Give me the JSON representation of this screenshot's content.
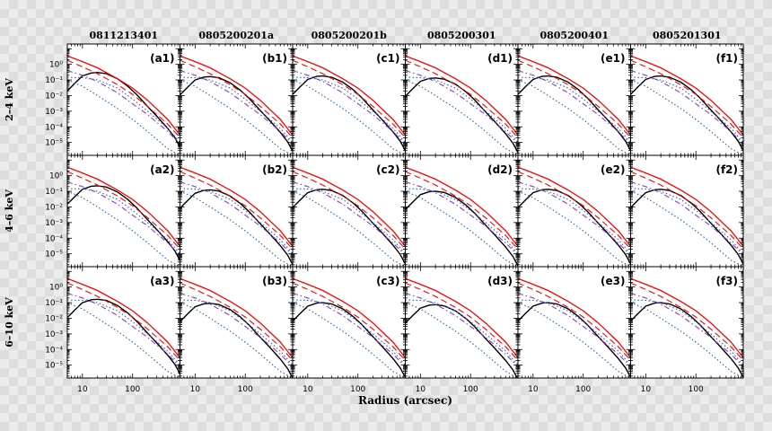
{
  "chart_data": {
    "type": "line",
    "title": "",
    "xlabel": "Radius (arcsec)",
    "xscale": "log",
    "yscale": "log",
    "xlim": [
      5,
      880
    ],
    "ylim": [
      1.5e-06,
      20
    ],
    "columns": [
      "0811213401",
      "0805200201a",
      "0805200201b",
      "0805200301",
      "0805200401",
      "0805201301"
    ],
    "rows": [
      "2–4 keV",
      "4–6 keV",
      "6–10 keV"
    ],
    "panel_labels": [
      [
        "(a1)",
        "(b1)",
        "(c1)",
        "(d1)",
        "(e1)",
        "(f1)"
      ],
      [
        "(a2)",
        "(b2)",
        "(c2)",
        "(d2)",
        "(e2)",
        "(f2)"
      ],
      [
        "(a3)",
        "(b3)",
        "(c3)",
        "(d3)",
        "(e3)",
        "(f3)"
      ]
    ],
    "x_ticks": [
      {
        "value": 10,
        "label": "10"
      },
      {
        "value": 100,
        "label": "100"
      }
    ],
    "y_ticks": [
      [
        {
          "value": 1,
          "label": "10⁰"
        },
        {
          "value": 0.1,
          "label": "10⁻¹"
        },
        {
          "value": 0.01,
          "label": "10⁻²"
        },
        {
          "value": 0.001,
          "label": "10⁻³"
        },
        {
          "value": 0.0001,
          "label": "10⁻⁴"
        },
        {
          "value": 1e-05,
          "label": "10⁻⁵"
        }
      ],
      [
        {
          "value": 1,
          "label": "10⁰"
        },
        {
          "value": 0.1,
          "label": "10⁻¹"
        },
        {
          "value": 0.01,
          "label": "10⁻²"
        },
        {
          "value": 0.001,
          "label": "10⁻³"
        },
        {
          "value": 0.0001,
          "label": "10⁻⁴"
        },
        {
          "value": 1e-05,
          "label": "10⁻⁵"
        }
      ],
      [
        {
          "value": 1,
          "label": "10⁰"
        },
        {
          "value": 0.1,
          "label": "10⁻¹"
        },
        {
          "value": 0.01,
          "label": "10⁻²"
        },
        {
          "value": 0.001,
          "label": "10⁻³"
        },
        {
          "value": 0.0001,
          "label": "10⁻⁴"
        },
        {
          "value": 1e-05,
          "label": "10⁻⁵"
        }
      ]
    ],
    "series": [
      {
        "name": "data profile",
        "style": "solid",
        "color": "#000000",
        "x": [
          5,
          7,
          10,
          15,
          20,
          30,
          50,
          80,
          120,
          200,
          300,
          500,
          700,
          880
        ],
        "y": [
          0.02,
          0.06,
          0.18,
          0.28,
          0.3,
          0.25,
          0.12,
          0.04,
          0.012,
          0.002,
          0.0005,
          8e-05,
          2e-05,
          5e-06
        ]
      },
      {
        "name": "total model",
        "style": "solid",
        "color": "#ff0000",
        "x": [
          5,
          10,
          20,
          50,
          100,
          200,
          500,
          880
        ],
        "y": [
          3.5,
          1.5,
          0.6,
          0.12,
          0.03,
          0.005,
          0.0003,
          3e-05
        ]
      },
      {
        "name": "model component",
        "style": "dashed",
        "color": "#ff0000",
        "x": [
          5,
          10,
          20,
          50,
          100,
          200,
          500,
          880
        ],
        "y": [
          1.8,
          0.7,
          0.25,
          0.05,
          0.012,
          0.002,
          0.00015,
          2e-05
        ]
      },
      {
        "name": "model component",
        "style": "dashdot",
        "color": "#9932cc",
        "x": [
          5,
          10,
          20,
          50,
          100,
          200,
          500,
          880
        ],
        "y": [
          0.4,
          0.2,
          0.08,
          0.015,
          0.003,
          0.0006,
          5e-05,
          8e-06
        ]
      },
      {
        "name": "background component",
        "style": "dotted",
        "color": "#1f5fd6",
        "x": [
          5,
          10,
          20,
          50,
          100,
          200,
          500,
          880
        ],
        "y": [
          0.15,
          0.14,
          0.1,
          0.03,
          0.006,
          0.001,
          8e-05,
          1e-05
        ]
      },
      {
        "name": "background component",
        "style": "dotted",
        "color": "#1f5fd6",
        "x": [
          5,
          10,
          20,
          50,
          100,
          200,
          500,
          880
        ],
        "y": [
          0.1,
          0.04,
          0.01,
          0.0015,
          0.0003,
          5e-05,
          4e-06,
          1.5e-06
        ]
      }
    ]
  }
}
